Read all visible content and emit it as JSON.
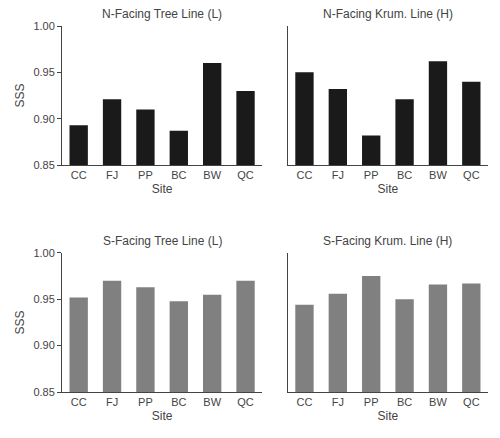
{
  "chart_data": [
    {
      "type": "bar",
      "title": "N-Facing Tree Line (L)",
      "categories": [
        "CC",
        "FJ",
        "PP",
        "BC",
        "BW",
        "QC"
      ],
      "values": [
        0.893,
        0.921,
        0.91,
        0.887,
        0.96,
        0.93
      ],
      "color": "#1a1a1a",
      "xlabel": "Site",
      "ylabel": "SSS",
      "ylim": [
        0.85,
        1.0
      ],
      "yticks": [
        0.85,
        {
          "value": 0.9,
          "label": "0.90"
        },
        0.95,
        {
          "value": 1.0,
          "label": "1.00"
        }
      ],
      "grid": false
    },
    {
      "type": "bar",
      "title": "N-Facing Krum. Line (H)",
      "categories": [
        "CC",
        "FJ",
        "PP",
        "BC",
        "BW",
        "QC"
      ],
      "values": [
        0.95,
        0.932,
        0.882,
        0.921,
        0.962,
        0.94
      ],
      "color": "#1a1a1a",
      "xlabel": "Site",
      "ylim": [
        0.85,
        1.0
      ],
      "yticks": [
        0.85,
        0.9,
        0.95,
        1.0
      ],
      "tick_labels": "x",
      "grid": false
    },
    {
      "type": "bar",
      "title": "S-Facing Tree Line (L)",
      "categories": [
        "CC",
        "FJ",
        "PP",
        "BC",
        "BW",
        "QC"
      ],
      "values": [
        0.952,
        0.97,
        0.963,
        0.948,
        0.955,
        0.97
      ],
      "color": "#808080",
      "xlabel": "Site",
      "ylabel": "SSS",
      "ylim": [
        0.85,
        1.0
      ],
      "yticks": [
        0.85,
        {
          "value": 0.9,
          "label": "0.90"
        },
        0.95,
        {
          "value": 1.0,
          "label": "1.00"
        }
      ],
      "grid": false
    },
    {
      "type": "bar",
      "title": "S-Facing Krum. Line (H)",
      "categories": [
        "CC",
        "FJ",
        "PP",
        "BC",
        "BW",
        "QC"
      ],
      "values": [
        0.944,
        0.956,
        0.975,
        0.95,
        0.966,
        0.967
      ],
      "color": "#808080",
      "xlabel": "Site",
      "ylim": [
        0.85,
        1.0
      ],
      "yticks": [
        0.85,
        0.9,
        0.95,
        1.0
      ],
      "tick_labels": "x",
      "grid": false
    }
  ]
}
